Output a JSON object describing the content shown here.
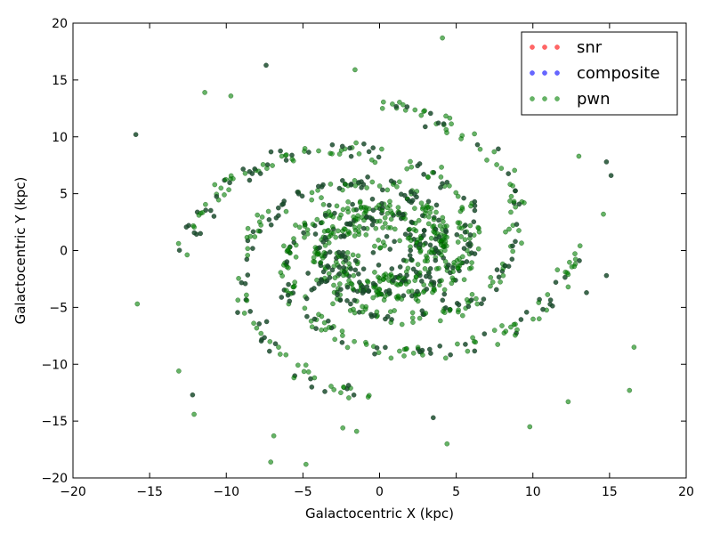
{
  "chart_data": {
    "type": "scatter",
    "xlabel": "Galactocentric X (kpc)",
    "ylabel": "Galactocentric Y (kpc)",
    "xlim": [
      -20,
      20
    ],
    "ylim": [
      -20,
      20
    ],
    "x_ticks": [
      -20,
      -15,
      -10,
      -5,
      0,
      5,
      10,
      15,
      20
    ],
    "y_ticks": [
      -20,
      -15,
      -10,
      -5,
      0,
      5,
      10,
      15,
      20
    ],
    "grid": false,
    "legend_placement": "top-right",
    "legend": [
      {
        "label": "snr",
        "color": "#ff0000",
        "alpha": 0.6
      },
      {
        "label": "composite",
        "color": "#0000ff",
        "alpha": 0.6
      },
      {
        "label": "pwn",
        "color": "#008000",
        "alpha": 0.6
      }
    ],
    "tick_labels": {
      "x": [
        "−20",
        "−15",
        "−10",
        "−5",
        "0",
        "5",
        "10",
        "15",
        "20"
      ],
      "y": [
        "−20",
        "−15",
        "−10",
        "−5",
        "0",
        "5",
        "10",
        "15",
        "20"
      ]
    },
    "series": [
      {
        "name": "snr",
        "color": "#ff0000",
        "points": []
      },
      {
        "name": "composite",
        "color": "#0000ff",
        "points": []
      },
      {
        "name": "pwn",
        "color": "#008000",
        "spiral_arms": 4,
        "arm_params": {
          "a": 2.5,
          "b": 0.22,
          "theta_max": 6.3,
          "spread": 0.35
        },
        "points_per_arm": 220,
        "core_points": 160,
        "core_radius": 4.5,
        "outlier_points": [
          [
            4.1,
            18.7
          ],
          [
            -7.4,
            16.3
          ],
          [
            -15.9,
            10.2
          ],
          [
            16.6,
            -8.5
          ],
          [
            -4.8,
            -18.8
          ],
          [
            -7.1,
            -18.6
          ],
          [
            9.8,
            -15.5
          ],
          [
            16.3,
            -12.3
          ],
          [
            12.3,
            -13.3
          ],
          [
            -12.1,
            -14.4
          ],
          [
            -12.2,
            -12.7
          ],
          [
            -13.1,
            -10.6
          ],
          [
            -15.8,
            -4.7
          ],
          [
            14.8,
            7.8
          ],
          [
            15.1,
            6.6
          ],
          [
            13.0,
            8.3
          ],
          [
            -1.6,
            15.9
          ],
          [
            -11.4,
            13.9
          ],
          [
            -9.7,
            13.6
          ],
          [
            4.4,
            -17.0
          ],
          [
            3.5,
            -14.7
          ],
          [
            -1.5,
            -15.9
          ],
          [
            -2.4,
            -15.6
          ],
          [
            -6.9,
            -16.3
          ],
          [
            14.6,
            3.2
          ],
          [
            12.3,
            -3.2
          ],
          [
            12.7,
            -1.4
          ],
          [
            11.6,
            -1.7
          ],
          [
            14.8,
            -2.2
          ],
          [
            13.5,
            -3.7
          ]
        ]
      }
    ]
  }
}
